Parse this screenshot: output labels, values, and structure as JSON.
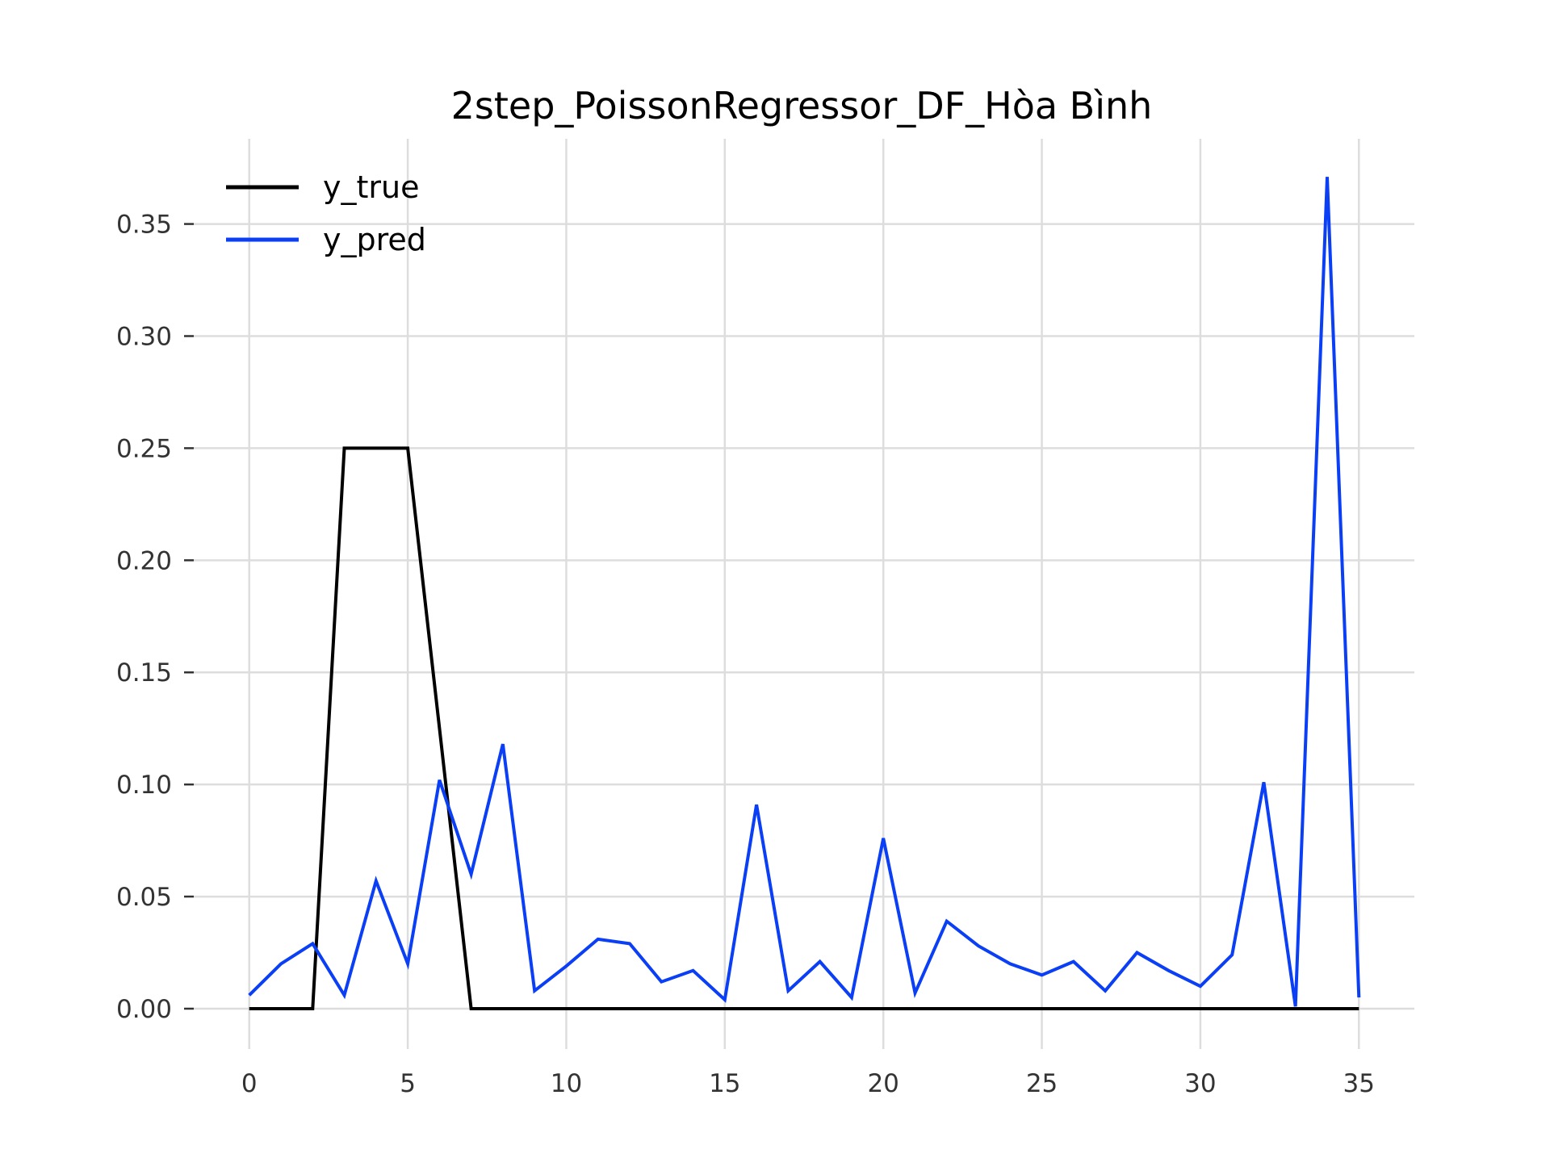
{
  "chart_data": {
    "type": "line",
    "title": "2step_PoissonRegressor_DF_Hòa Bình",
    "xlabel": "",
    "ylabel": "",
    "xlim": [
      -1.75,
      36.75
    ],
    "ylim": [
      -0.018,
      0.388
    ],
    "xticks": [
      0,
      5,
      10,
      15,
      20,
      25,
      30,
      35
    ],
    "xtick_labels": [
      "0",
      "5",
      "10",
      "15",
      "20",
      "25",
      "30",
      "35"
    ],
    "yticks": [
      0.0,
      0.05,
      0.1,
      0.15,
      0.2,
      0.25,
      0.3,
      0.35
    ],
    "ytick_labels": [
      "0.00",
      "0.05",
      "0.10",
      "0.15",
      "0.20",
      "0.25",
      "0.30",
      "0.35"
    ],
    "grid": true,
    "legend_position": "top-left",
    "x": [
      0,
      1,
      2,
      3,
      4,
      5,
      6,
      7,
      8,
      9,
      10,
      11,
      12,
      13,
      14,
      15,
      16,
      17,
      18,
      19,
      20,
      21,
      22,
      23,
      24,
      25,
      26,
      27,
      28,
      29,
      30,
      31,
      32,
      33,
      34,
      35
    ],
    "series": [
      {
        "name": "y_true",
        "color": "#000000",
        "values": [
          0,
          0,
          0,
          0.25,
          0.25,
          0.25,
          0.125,
          0,
          0,
          0,
          0,
          0,
          0,
          0,
          0,
          0,
          0,
          0,
          0,
          0,
          0,
          0,
          0,
          0,
          0,
          0,
          0,
          0,
          0,
          0,
          0,
          0,
          0,
          0,
          0,
          0
        ]
      },
      {
        "name": "y_pred",
        "color": "#0a3ff5",
        "values": [
          0.006,
          0.02,
          0.029,
          0.006,
          0.057,
          0.02,
          0.102,
          0.06,
          0.118,
          0.008,
          0.019,
          0.031,
          0.029,
          0.012,
          0.017,
          0.004,
          0.091,
          0.008,
          0.021,
          0.005,
          0.076,
          0.007,
          0.039,
          0.028,
          0.02,
          0.015,
          0.021,
          0.008,
          0.025,
          0.017,
          0.01,
          0.024,
          0.101,
          0.001,
          0.371,
          0.005
        ]
      }
    ]
  }
}
